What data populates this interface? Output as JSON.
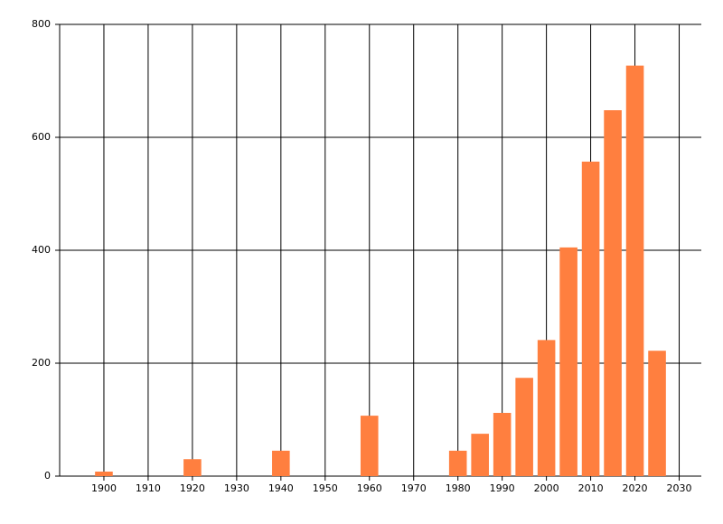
{
  "chart_data": {
    "type": "bar",
    "x": [
      1900,
      1920,
      1940,
      1960,
      1980,
      1985,
      1990,
      1995,
      2000,
      2005,
      2010,
      2015,
      2020,
      2025
    ],
    "values": [
      8,
      30,
      45,
      107,
      45,
      75,
      112,
      174,
      241,
      405,
      557,
      648,
      727,
      222
    ],
    "color": "#ff7f3f",
    "xlim": [
      1890,
      2035
    ],
    "xticks": [
      1900,
      1910,
      1920,
      1930,
      1940,
      1950,
      1960,
      1970,
      1980,
      1990,
      2000,
      2010,
      2020,
      2030
    ],
    "ylim": [
      0,
      800
    ],
    "yticks": [
      0,
      200,
      400,
      600,
      800
    ],
    "grid": true
  }
}
